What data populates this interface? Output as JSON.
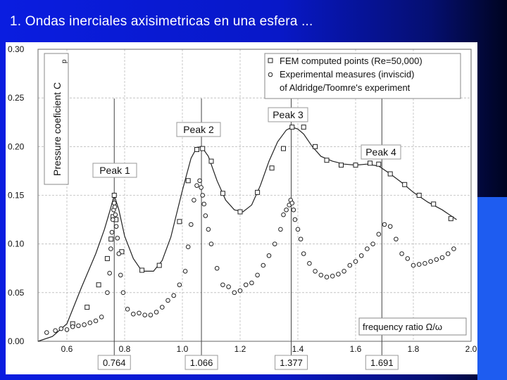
{
  "slide": {
    "title": "1. Ondas inerciales axisimetricas en una esfera ..."
  },
  "colors": {
    "background": "#0818c8",
    "accent": "#1e5cf0",
    "title_text": "#ffffff",
    "plot_line": "#222222"
  },
  "chart_data": {
    "type": "scatter",
    "ylabel": "Pressure coeficient C",
    "ylabel_subscript": "p",
    "xlabel": "frequency ratio  Ω/ω",
    "xlim": [
      0.5,
      2.0
    ],
    "ylim": [
      0.0,
      0.3
    ],
    "x_ticks": [
      "0.6",
      "0.8",
      "1.0",
      "1.2",
      "1.4",
      "1.6",
      "1.8",
      "2.0"
    ],
    "y_ticks": [
      "0.00",
      "0.05",
      "0.10",
      "0.15",
      "0.20",
      "0.25",
      "0.30"
    ],
    "grid": true,
    "legend_position": "top-right",
    "series": [
      {
        "name": "FEM computed points (Re=50,000)",
        "marker": "square",
        "curve_x": [
          0.5,
          0.55,
          0.6,
          0.65,
          0.7,
          0.73,
          0.75,
          0.764,
          0.78,
          0.8,
          0.83,
          0.86,
          0.9,
          0.93,
          0.96,
          1.0,
          1.03,
          1.05,
          1.066,
          1.09,
          1.12,
          1.15,
          1.18,
          1.21,
          1.24,
          1.27,
          1.3,
          1.33,
          1.36,
          1.38,
          1.4,
          1.42,
          1.45,
          1.48,
          1.52,
          1.56,
          1.6,
          1.64,
          1.68,
          1.72,
          1.76,
          1.8,
          1.85,
          1.9,
          1.95
        ],
        "curve_y": [
          0.0,
          0.005,
          0.018,
          0.055,
          0.09,
          0.115,
          0.135,
          0.15,
          0.135,
          0.108,
          0.085,
          0.072,
          0.072,
          0.083,
          0.107,
          0.155,
          0.188,
          0.199,
          0.2,
          0.19,
          0.165,
          0.145,
          0.135,
          0.133,
          0.14,
          0.16,
          0.185,
          0.205,
          0.217,
          0.22,
          0.218,
          0.213,
          0.2,
          0.19,
          0.185,
          0.182,
          0.181,
          0.182,
          0.18,
          0.172,
          0.163,
          0.153,
          0.143,
          0.135,
          0.125
        ],
        "points_x": [
          0.62,
          0.67,
          0.71,
          0.74,
          0.753,
          0.76,
          0.764,
          0.77,
          0.79,
          0.86,
          0.92,
          0.99,
          1.02,
          1.05,
          1.07,
          1.1,
          1.14,
          1.2,
          1.26,
          1.31,
          1.35,
          1.38,
          1.42,
          1.46,
          1.5,
          1.55,
          1.6,
          1.65,
          1.68,
          1.72,
          1.77,
          1.82,
          1.87,
          1.93
        ],
        "points_y": [
          0.018,
          0.035,
          0.058,
          0.085,
          0.105,
          0.128,
          0.15,
          0.125,
          0.092,
          0.073,
          0.078,
          0.123,
          0.165,
          0.197,
          0.198,
          0.185,
          0.152,
          0.133,
          0.153,
          0.178,
          0.198,
          0.22,
          0.22,
          0.2,
          0.186,
          0.181,
          0.181,
          0.183,
          0.182,
          0.172,
          0.161,
          0.15,
          0.141,
          0.126
        ]
      },
      {
        "name": "Experimental measures (inviscid)",
        "name_line2": "of Aldridge/Toomre's experiment",
        "marker": "circle",
        "points_x": [
          0.53,
          0.56,
          0.58,
          0.6,
          0.62,
          0.64,
          0.66,
          0.68,
          0.7,
          0.72,
          0.74,
          0.748,
          0.752,
          0.756,
          0.759,
          0.762,
          0.764,
          0.766,
          0.768,
          0.771,
          0.775,
          0.78,
          0.786,
          0.795,
          0.81,
          0.83,
          0.85,
          0.87,
          0.89,
          0.91,
          0.93,
          0.95,
          0.97,
          0.99,
          1.01,
          1.02,
          1.03,
          1.04,
          1.05,
          1.06,
          1.065,
          1.07,
          1.075,
          1.08,
          1.09,
          1.1,
          1.12,
          1.14,
          1.16,
          1.18,
          1.2,
          1.22,
          1.24,
          1.26,
          1.28,
          1.3,
          1.32,
          1.34,
          1.35,
          1.36,
          1.37,
          1.375,
          1.38,
          1.385,
          1.39,
          1.4,
          1.41,
          1.42,
          1.44,
          1.46,
          1.48,
          1.5,
          1.52,
          1.54,
          1.56,
          1.58,
          1.6,
          1.62,
          1.64,
          1.66,
          1.68,
          1.7,
          1.72,
          1.74,
          1.76,
          1.78,
          1.8,
          1.82,
          1.84,
          1.86,
          1.88,
          1.9,
          1.92,
          1.94
        ],
        "points_y": [
          0.009,
          0.011,
          0.013,
          0.012,
          0.015,
          0.016,
          0.017,
          0.019,
          0.021,
          0.025,
          0.05,
          0.07,
          0.095,
          0.112,
          0.125,
          0.135,
          0.142,
          0.138,
          0.13,
          0.118,
          0.106,
          0.09,
          0.068,
          0.05,
          0.033,
          0.028,
          0.029,
          0.027,
          0.027,
          0.03,
          0.035,
          0.042,
          0.047,
          0.058,
          0.072,
          0.097,
          0.12,
          0.145,
          0.16,
          0.165,
          0.158,
          0.15,
          0.141,
          0.129,
          0.115,
          0.1,
          0.075,
          0.058,
          0.056,
          0.05,
          0.052,
          0.058,
          0.06,
          0.068,
          0.078,
          0.088,
          0.1,
          0.115,
          0.13,
          0.135,
          0.14,
          0.145,
          0.142,
          0.135,
          0.125,
          0.115,
          0.105,
          0.09,
          0.08,
          0.072,
          0.068,
          0.066,
          0.067,
          0.069,
          0.072,
          0.078,
          0.082,
          0.088,
          0.095,
          0.1,
          0.11,
          0.12,
          0.118,
          0.105,
          0.09,
          0.085,
          0.078,
          0.079,
          0.08,
          0.082,
          0.084,
          0.086,
          0.09,
          0.095
        ]
      }
    ],
    "annotations": [
      {
        "label": "Peak 1",
        "x": 0.764,
        "y": 0.15
      },
      {
        "label": "Peak 2",
        "x": 1.066,
        "y": 0.2
      },
      {
        "label": "Peak 3",
        "x": 1.377,
        "y": 0.22
      },
      {
        "label": "Peak 4",
        "x": 1.691,
        "y": 0.182
      }
    ],
    "peak_lines": [
      {
        "x": 0.764,
        "label": "0.764"
      },
      {
        "x": 1.066,
        "label": "1.066"
      },
      {
        "x": 1.377,
        "label": "1.377"
      },
      {
        "x": 1.691,
        "label": "1.691"
      }
    ]
  }
}
